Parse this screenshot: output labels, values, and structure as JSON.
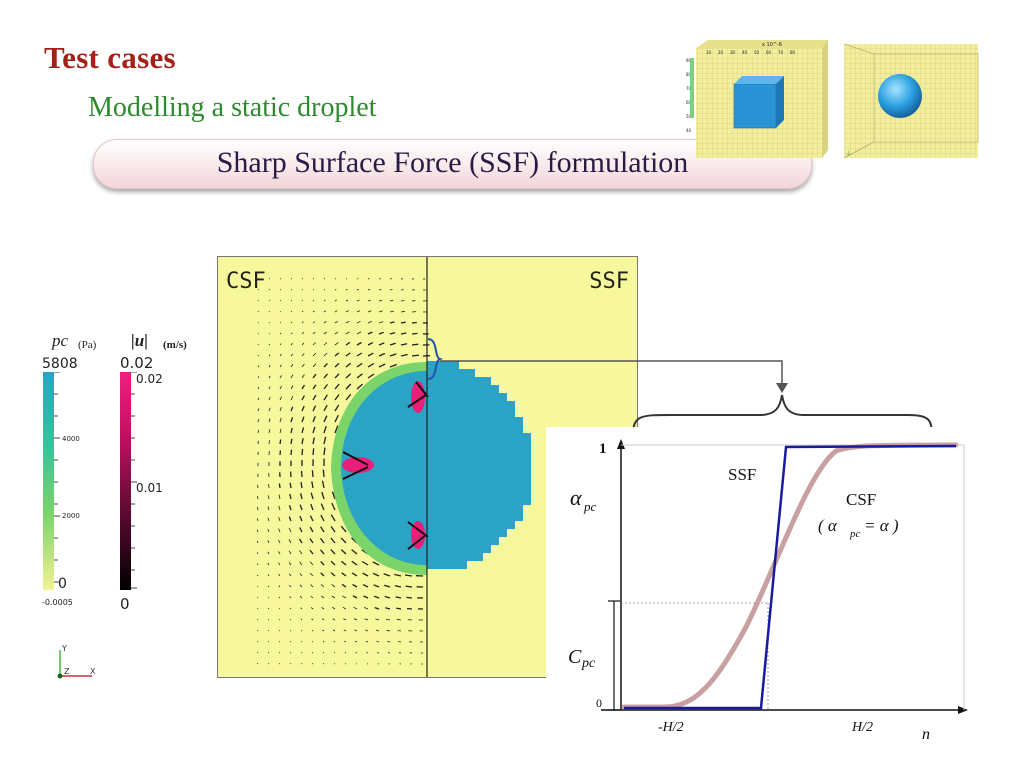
{
  "slide": {
    "title": "Test cases",
    "subtitle": "Modelling a static droplet",
    "banner": "Sharp Surface Force (SSF) formulation"
  },
  "simulation": {
    "left_label": "CSF",
    "right_label": "SSF"
  },
  "legend_pc": {
    "title": "pc",
    "unit": "(Pa)",
    "max_label": "5808",
    "min_label": "0",
    "min_sub_label": "-0.0005",
    "ticks": [
      "4000",
      "2000"
    ],
    "colors": [
      "#2aa3c4",
      "#3ac39a",
      "#7ad46a",
      "#f3f296"
    ]
  },
  "legend_u": {
    "title": "|u|",
    "unit": "(m/s)",
    "max_label": "0.02",
    "max_sub_label": "0.02",
    "mid_label": "0.01",
    "min_label": "0",
    "colors": [
      "#f01f80",
      "#c01060",
      "#400020",
      "#000000"
    ]
  },
  "axes_icon": {
    "y": "Y",
    "z": "Z",
    "x": "X"
  },
  "plot": {
    "y_top": "1",
    "y_bottom": "0",
    "y_label": "α",
    "y_label_sub": "pc",
    "c_label": "C",
    "c_label_sub": "pc",
    "x_left": "-H/2",
    "x_right": "H/2",
    "x_label": "n",
    "ssf_label": "SSF",
    "csf_label": "CSF",
    "csf_eq_open": "( α",
    "csf_eq_sub": "pc",
    "csf_eq_close": "= α )",
    "ssf_color": "#1a1aa0",
    "csf_color": "#c8a0a0"
  },
  "thumbnails": {
    "left_axis_label": "x 10^-6",
    "left_ticks": [
      "10",
      "20",
      "30",
      "40",
      "50",
      "60",
      "70",
      "80"
    ],
    "left_side_ticks": [
      "90",
      "80",
      "70",
      "60",
      "50",
      "40"
    ]
  }
}
